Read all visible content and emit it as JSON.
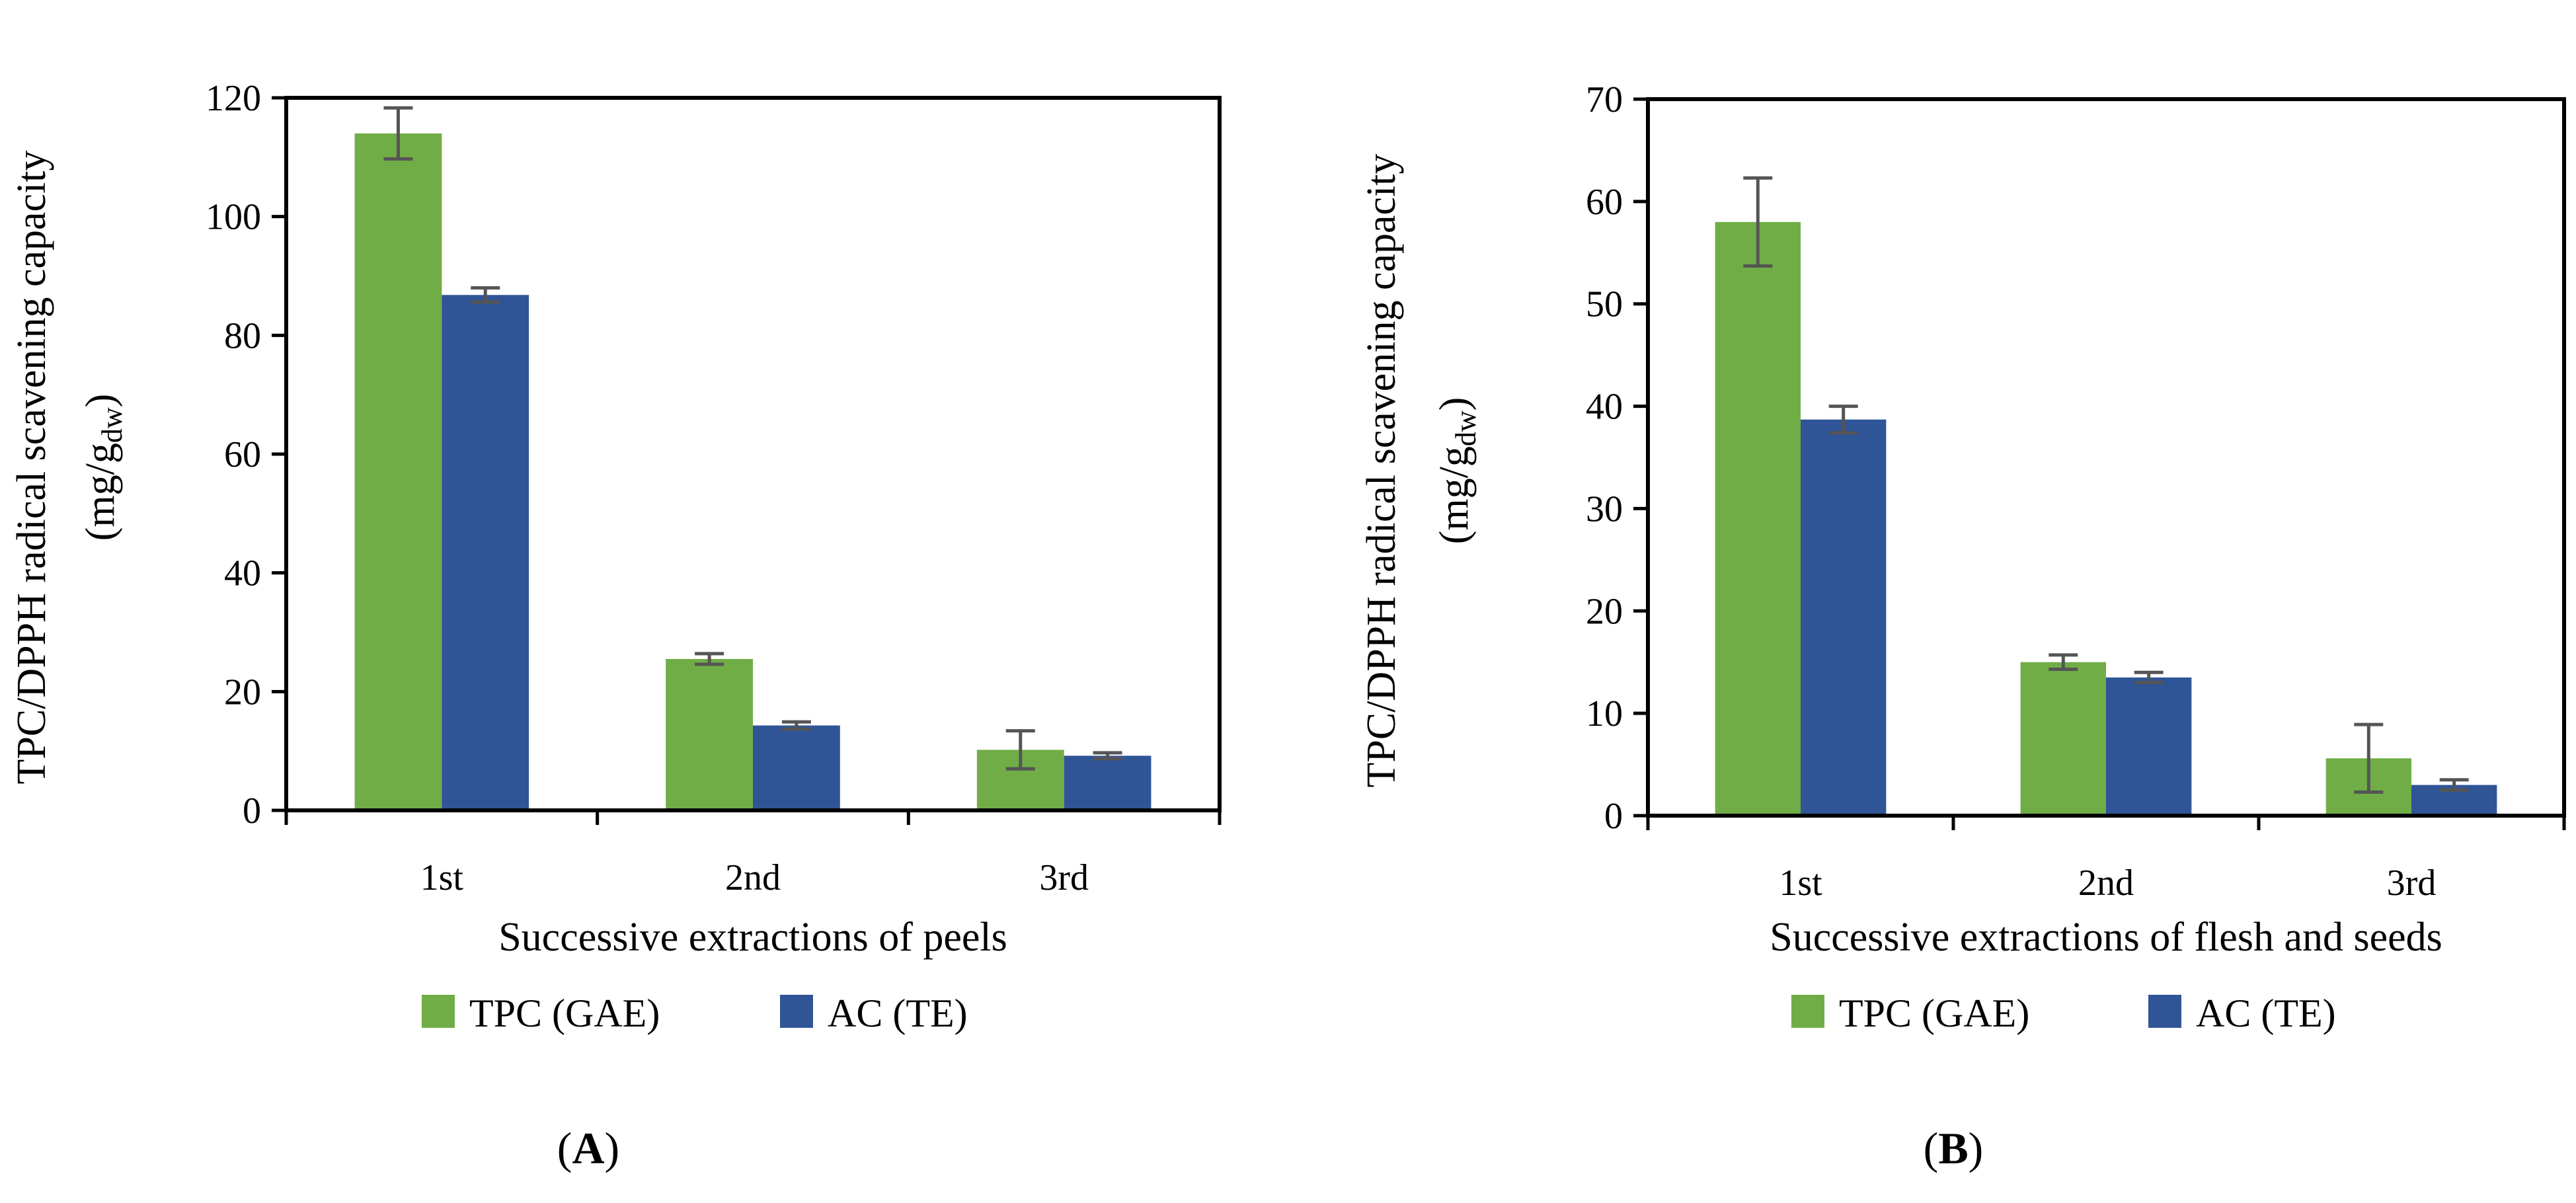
{
  "chart_data": [
    {
      "type": "bar",
      "panel_label": "A",
      "ylabel_line1": "TPC/DPPH radical scavening capacity",
      "ylabel_prefix": "(mg/g",
      "ylabel_subscript": "dw",
      "ylabel_suffix": ")",
      "xlabel": "Successive extractions of peels",
      "categories": [
        "1st",
        "2nd",
        "3rd"
      ],
      "ylim": [
        0,
        120
      ],
      "yticks": [
        0,
        20,
        40,
        60,
        80,
        100,
        120
      ],
      "series": [
        {
          "name": "TPC (GAE)",
          "color": "#70AD47",
          "values": [
            114,
            25.5,
            10.2
          ],
          "errors": [
            4.3,
            0.9,
            3.2
          ]
        },
        {
          "name": "AC (TE)",
          "color": "#2F5597",
          "values": [
            86.8,
            14.3,
            9.2
          ],
          "errors": [
            1.2,
            0.6,
            0.5
          ]
        }
      ],
      "legend_position": "bottom"
    },
    {
      "type": "bar",
      "panel_label": "B",
      "ylabel_line1": "TPC/DPPH radical scavening capacity",
      "ylabel_prefix": "(mg/g",
      "ylabel_subscript": "dw",
      "ylabel_suffix": ")",
      "xlabel": "Successive extractions of flesh and seeds",
      "categories": [
        "1st",
        "2nd",
        "3rd"
      ],
      "ylim": [
        0,
        70
      ],
      "yticks": [
        0,
        10,
        20,
        30,
        40,
        50,
        60,
        70
      ],
      "series": [
        {
          "name": "TPC (GAE)",
          "color": "#70AD47",
          "values": [
            58,
            15,
            5.6
          ],
          "errors": [
            4.3,
            0.7,
            3.3
          ]
        },
        {
          "name": "AC (TE)",
          "color": "#2F5597",
          "values": [
            38.7,
            13.5,
            3
          ],
          "errors": [
            1.3,
            0.5,
            0.5
          ]
        }
      ],
      "legend_position": "bottom"
    }
  ]
}
